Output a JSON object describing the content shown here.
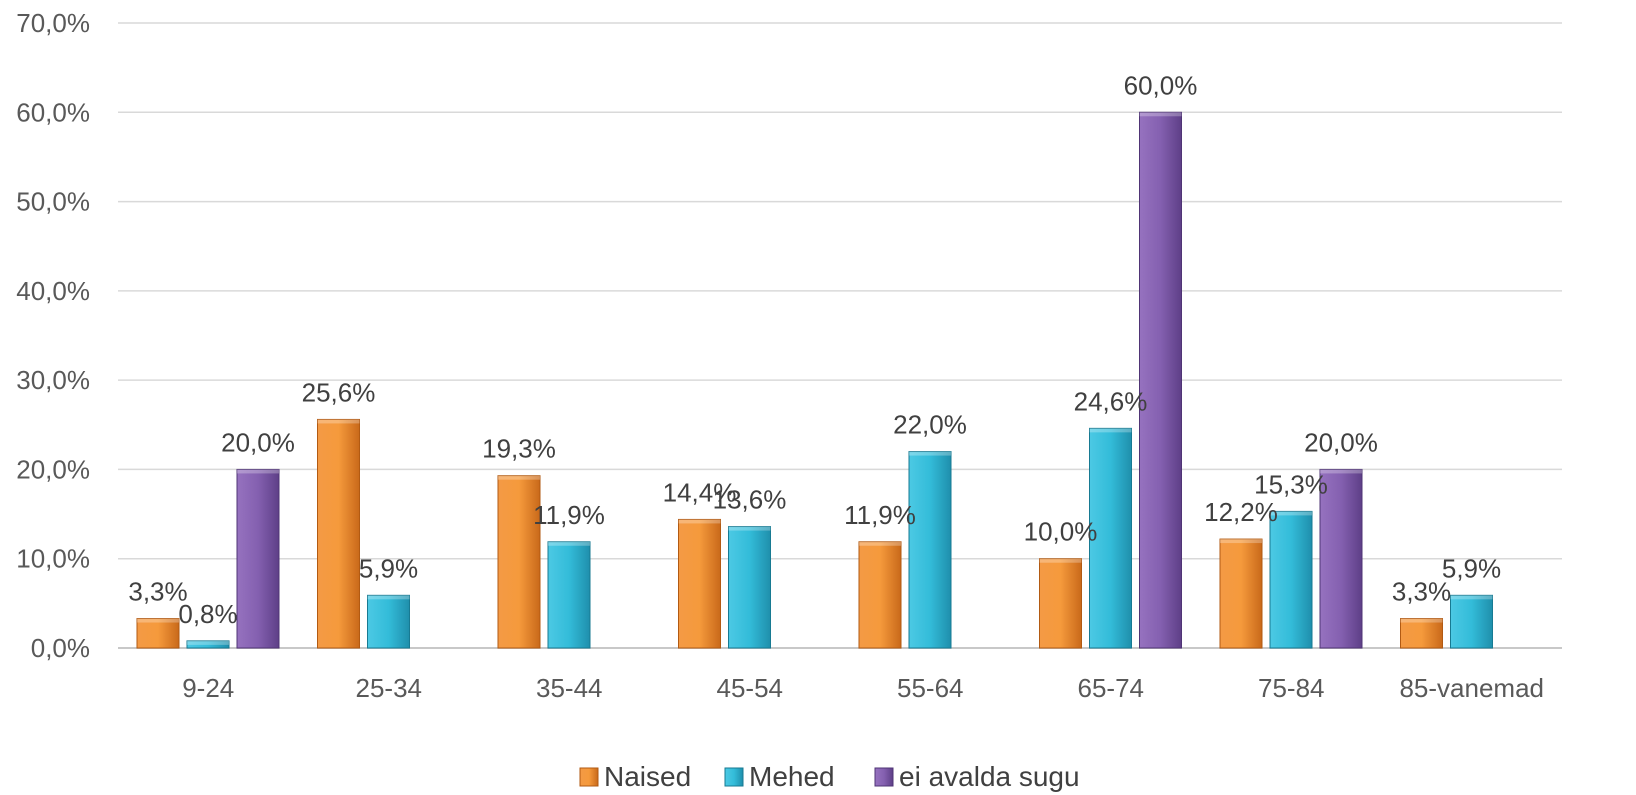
{
  "chart_data": {
    "type": "bar",
    "categories": [
      "9-24",
      "25-34",
      "35-44",
      "45-54",
      "55-64",
      "65-74",
      "75-84",
      "85-vanemad"
    ],
    "series": [
      {
        "name": "Naised",
        "color": "#f0862a",
        "values": [
          3.3,
          25.6,
          19.3,
          14.4,
          11.9,
          10.0,
          12.2,
          3.3
        ],
        "labels": [
          "3,3%",
          "25,6%",
          "19,3%",
          "14,4%",
          "11,9%",
          "10,0%",
          "12,2%",
          "3,3%"
        ]
      },
      {
        "name": "Mehed",
        "color": "#2bb5d4",
        "values": [
          0.8,
          5.9,
          11.9,
          13.6,
          22.0,
          24.6,
          15.3,
          5.9
        ],
        "labels": [
          "0,8%",
          "5,9%",
          "11,9%",
          "13,6%",
          "22,0%",
          "24,6%",
          "15,3%",
          "5,9%"
        ]
      },
      {
        "name": "ei avalda sugu",
        "color": "#7d57a8",
        "values": [
          20.0,
          null,
          null,
          null,
          null,
          60.0,
          20.0,
          null
        ],
        "labels": [
          "20,0%",
          null,
          null,
          null,
          null,
          "60,0%",
          "20,0%",
          null
        ]
      }
    ],
    "yticks": [
      "0,0%",
      "10,0%",
      "20,0%",
      "30,0%",
      "40,0%",
      "50,0%",
      "60,0%",
      "70,0%"
    ],
    "ylim": [
      0,
      70
    ],
    "grid": true,
    "legend_position": "bottom"
  }
}
